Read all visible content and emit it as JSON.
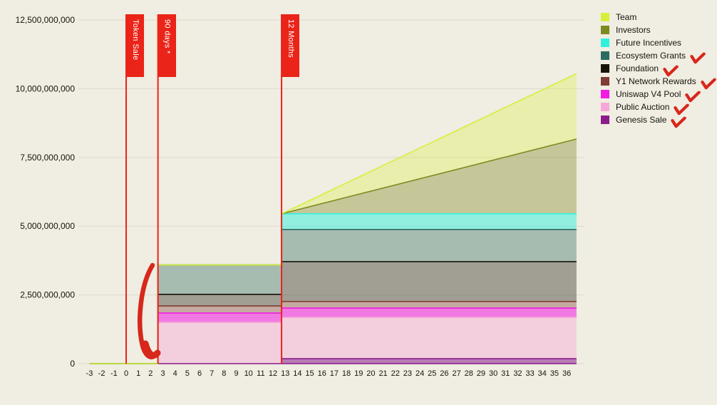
{
  "background_color": "#f0ede2",
  "accent_red": "#ea2418",
  "legend": {
    "position": "top-right",
    "items": [
      {
        "label": "Team",
        "color": "#d9ee3b",
        "checked": false
      },
      {
        "label": "Investors",
        "color": "#7d8a1f",
        "checked": false
      },
      {
        "label": "Future Incentives",
        "color": "#30f2dc",
        "checked": false
      },
      {
        "label": "Ecosystem Grants",
        "color": "#2c6b60",
        "checked": true
      },
      {
        "label": "Foundation",
        "color": "#16130b",
        "checked": true
      },
      {
        "label": "Y1 Network Rewards",
        "color": "#7f3d33",
        "checked": true
      },
      {
        "label": "Uniswap V4 Pool",
        "color": "#f21be2",
        "checked": true
      },
      {
        "label": "Public Auction",
        "color": "#f7a8d8",
        "checked": true
      },
      {
        "label": "Genesis Sale",
        "color": "#8b1d8b",
        "checked": true
      }
    ]
  },
  "annotations": {
    "flags": [
      {
        "label": "Token Sale",
        "month": 0
      },
      {
        "label": "90 days *",
        "month": 2.6
      },
      {
        "label": "12 Months",
        "month": 12.7
      }
    ],
    "hand_drawn": {
      "left_brace_present": true,
      "checkmark_color": "#d8271b",
      "checked_items": [
        "Ecosystem Grants",
        "Foundation",
        "Y1 Network Rewards",
        "Uniswap V4 Pool",
        "Public Auction",
        "Genesis Sale"
      ]
    }
  },
  "chart_data": {
    "type": "area",
    "stacked": true,
    "stack_order": "bottom_to_top",
    "x_months": [
      -3,
      2.6,
      2.6,
      12.7,
      12.7,
      36.8
    ],
    "series": [
      {
        "name": "Genesis Sale",
        "color": "#8b1d8b",
        "fill_alpha": 0.55,
        "values": [
          0,
          0,
          0,
          0,
          180000000,
          180000000
        ]
      },
      {
        "name": "Public Auction",
        "color": "#f7a8d8",
        "fill_alpha": 0.42,
        "values": [
          0,
          0,
          1500000000,
          1500000000,
          1500000000,
          1500000000
        ]
      },
      {
        "name": "Uniswap V4 Pool",
        "color": "#f21be2",
        "fill_alpha": 0.55,
        "values": [
          0,
          0,
          340000000,
          340000000,
          340000000,
          340000000
        ]
      },
      {
        "name": "Y1 Network Rewards",
        "color": "#7f3d33",
        "fill_alpha": 0.38,
        "values": [
          0,
          0,
          260000000,
          260000000,
          240000000,
          240000000
        ]
      },
      {
        "name": "Foundation",
        "color": "#16130b",
        "fill_alpha": 0.36,
        "values": [
          0,
          0,
          420000000,
          420000000,
          1450000000,
          1450000000
        ]
      },
      {
        "name": "Ecosystem Grants",
        "color": "#2c6b60",
        "fill_alpha": 0.38,
        "values": [
          0,
          0,
          1070000000,
          1070000000,
          1170000000,
          1170000000
        ]
      },
      {
        "name": "Future Incentives",
        "color": "#30f2dc",
        "fill_alpha": 0.5,
        "values": [
          0,
          0,
          0,
          0,
          570000000,
          570000000
        ]
      },
      {
        "name": "Investors",
        "color": "#7d8a1f",
        "fill_alpha": 0.38,
        "values": [
          0,
          0,
          0,
          0,
          0,
          2720000000
        ]
      },
      {
        "name": "Team",
        "color": "#d9ee3b",
        "fill_alpha": 0.32,
        "values": [
          0,
          0,
          0,
          0,
          0,
          2380000000
        ]
      }
    ],
    "x_ticks": [
      -3,
      -2,
      -1,
      0,
      1,
      2,
      3,
      4,
      5,
      6,
      7,
      8,
      9,
      10,
      11,
      12,
      13,
      14,
      15,
      16,
      17,
      18,
      19,
      20,
      21,
      22,
      23,
      24,
      25,
      26,
      27,
      28,
      29,
      30,
      31,
      32,
      33,
      34,
      35,
      36
    ],
    "y_ticks": [
      {
        "value": 0,
        "label": "0"
      },
      {
        "value": 2500000000,
        "label": "2,500,000,000"
      },
      {
        "value": 5000000000,
        "label": "5,000,000,000"
      },
      {
        "value": 7500000000,
        "label": "7,500,000,000"
      },
      {
        "value": 10000000000,
        "label": "10,000,000,000"
      },
      {
        "value": 12500000000,
        "label": "12,500,000,000"
      }
    ],
    "ylim": [
      0,
      12500000000
    ],
    "xlim": [
      -3.8,
      37
    ],
    "grid": "horizontal",
    "title": "",
    "xlabel": "",
    "ylabel": ""
  }
}
